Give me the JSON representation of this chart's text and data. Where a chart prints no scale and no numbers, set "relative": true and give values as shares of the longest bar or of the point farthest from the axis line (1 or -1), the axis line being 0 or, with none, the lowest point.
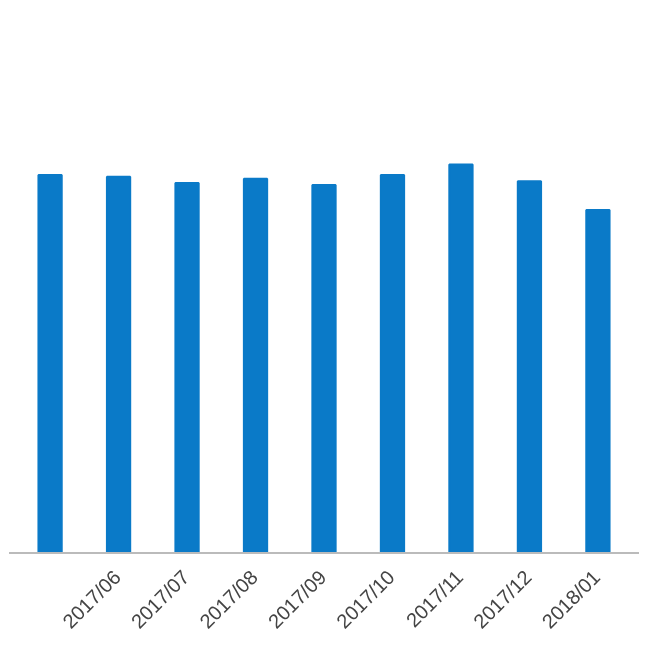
{
  "chart_data": {
    "type": "bar",
    "relative": true,
    "categories": [
      null,
      "2017/06",
      "2017/07",
      "2017/08",
      "2017/09",
      "2017/10",
      "2017/11",
      "2017/12",
      "2018/01"
    ],
    "values": [
      0.973,
      0.968,
      0.952,
      0.963,
      0.947,
      0.973,
      1,
      0.957,
      0.883
    ],
    "color": "#0a7ac8"
  }
}
